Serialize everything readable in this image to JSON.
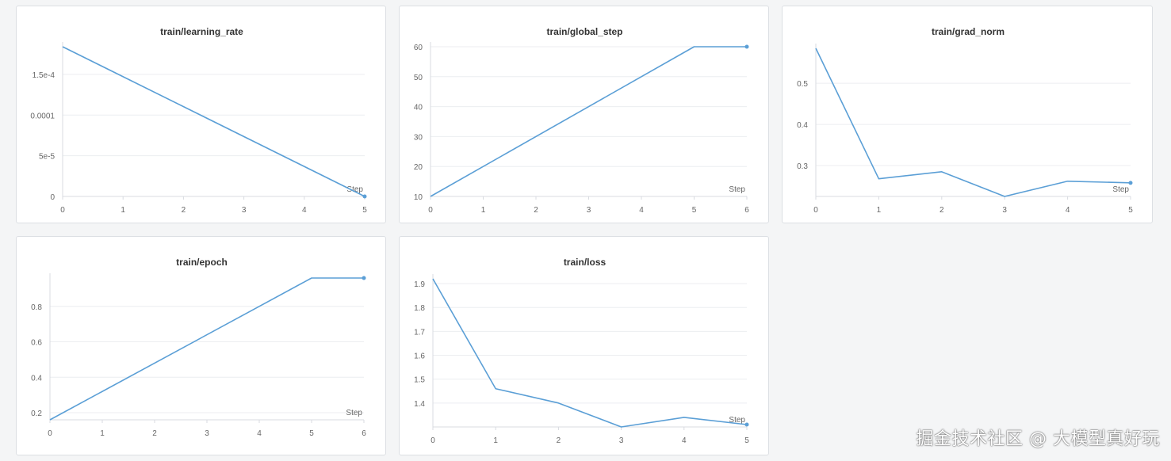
{
  "accent_color": "#5b9fd6",
  "x_axis_label": "Step",
  "watermark": "掘金技术社区 @ 大模型真好玩",
  "chart_data": [
    {
      "id": "chart-learning-rate",
      "type": "line",
      "title": "train/learning_rate",
      "xlabel": "Step",
      "x": [
        0,
        5
      ],
      "y": [
        0.000184,
        0.0
      ],
      "xlim": [
        0,
        5
      ],
      "ylim": [
        0,
        0.000184
      ],
      "xticks": [
        0,
        1,
        2,
        3,
        4,
        5
      ],
      "xtick_labels": [
        "0",
        "1",
        "2",
        "3",
        "4",
        "5"
      ],
      "yticks": [
        0,
        5e-05,
        0.0001,
        0.00015
      ],
      "ytick_labels": [
        "0",
        "5e-5",
        "0.0001",
        "1.5e-4"
      ],
      "grid": true
    },
    {
      "id": "chart-global-step",
      "type": "line",
      "title": "train/global_step",
      "xlabel": "Step",
      "x": [
        0,
        5,
        6
      ],
      "y": [
        10,
        60,
        60
      ],
      "xlim": [
        0,
        6
      ],
      "ylim": [
        10,
        60
      ],
      "xticks": [
        0,
        1,
        2,
        3,
        4,
        5,
        6
      ],
      "xtick_labels": [
        "0",
        "1",
        "2",
        "3",
        "4",
        "5",
        "6"
      ],
      "yticks": [
        10,
        20,
        30,
        40,
        50,
        60
      ],
      "ytick_labels": [
        "10",
        "20",
        "30",
        "40",
        "50",
        "60"
      ],
      "grid": true
    },
    {
      "id": "chart-grad-norm",
      "type": "line",
      "title": "train/grad_norm",
      "xlabel": "Step",
      "x": [
        0,
        1,
        2,
        3,
        4,
        5
      ],
      "y": [
        0.585,
        0.268,
        0.285,
        0.225,
        0.262,
        0.258
      ],
      "xlim": [
        0,
        5
      ],
      "ylim": [
        0.225,
        0.585
      ],
      "xticks": [
        0,
        1,
        2,
        3,
        4,
        5
      ],
      "xtick_labels": [
        "0",
        "1",
        "2",
        "3",
        "4",
        "5"
      ],
      "yticks": [
        0.3,
        0.4,
        0.5
      ],
      "ytick_labels": [
        "0.3",
        "0.4",
        "0.5"
      ],
      "grid": true
    },
    {
      "id": "chart-epoch",
      "type": "line",
      "title": "train/epoch",
      "xlabel": "Step",
      "x": [
        0,
        5,
        6
      ],
      "y": [
        0.16,
        0.96,
        0.96
      ],
      "xlim": [
        0,
        6
      ],
      "ylim": [
        0.16,
        0.96
      ],
      "xticks": [
        0,
        1,
        2,
        3,
        4,
        5,
        6
      ],
      "xtick_labels": [
        "0",
        "1",
        "2",
        "3",
        "4",
        "5",
        "6"
      ],
      "yticks": [
        0.2,
        0.4,
        0.6,
        0.8
      ],
      "ytick_labels": [
        "0.2",
        "0.4",
        "0.6",
        "0.8"
      ],
      "grid": true
    },
    {
      "id": "chart-loss",
      "type": "line",
      "title": "train/loss",
      "xlabel": "Step",
      "x": [
        0,
        1,
        2,
        3,
        4,
        5
      ],
      "y": [
        1.92,
        1.46,
        1.4,
        1.3,
        1.34,
        1.31
      ],
      "xlim": [
        0,
        5
      ],
      "ylim": [
        1.3,
        1.92
      ],
      "xticks": [
        0,
        1,
        2,
        3,
        4,
        5
      ],
      "xtick_labels": [
        "0",
        "1",
        "2",
        "3",
        "4",
        "5"
      ],
      "yticks": [
        1.4,
        1.5,
        1.6,
        1.7,
        1.8,
        1.9
      ],
      "ytick_labels": [
        "1.4",
        "1.5",
        "1.6",
        "1.7",
        "1.8",
        "1.9"
      ],
      "grid": true
    }
  ]
}
